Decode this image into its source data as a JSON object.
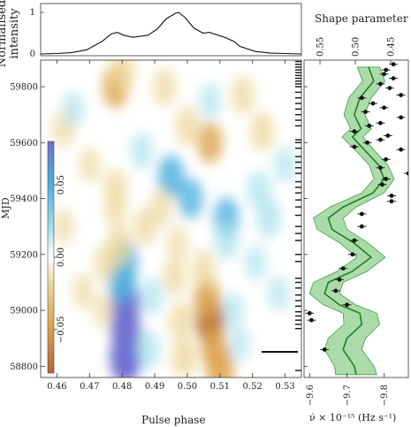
{
  "chart_data": [
    {
      "panel": "profile",
      "type": "line",
      "ylabel": "Normalised intensity",
      "yticks": [
        "0",
        "1"
      ],
      "ylim": [
        0,
        1
      ],
      "xlim": [
        0.455,
        0.54
      ],
      "x": [
        0.455,
        0.46,
        0.465,
        0.47,
        0.475,
        0.478,
        0.48,
        0.482,
        0.485,
        0.488,
        0.49,
        0.493,
        0.496,
        0.499,
        0.5,
        0.502,
        0.505,
        0.508,
        0.51,
        0.512,
        0.515,
        0.518,
        0.52,
        0.525,
        0.53,
        0.535,
        0.54
      ],
      "values": [
        0.0,
        0.01,
        0.03,
        0.1,
        0.3,
        0.48,
        0.52,
        0.45,
        0.4,
        0.43,
        0.45,
        0.6,
        0.85,
        0.98,
        1.0,
        0.88,
        0.62,
        0.5,
        0.52,
        0.47,
        0.4,
        0.3,
        0.18,
        0.06,
        0.02,
        0.01,
        0.0
      ],
      "color": "#111111"
    },
    {
      "panel": "residual_map",
      "type": "heatmap",
      "xlabel": "Pulse phase",
      "ylabel": "MJD",
      "xticks": [
        "0.46",
        "0.47",
        "0.48",
        "0.49",
        "0.50",
        "0.51",
        "0.52",
        "0.53"
      ],
      "xtick_values": [
        0.46,
        0.47,
        0.48,
        0.49,
        0.5,
        0.51,
        0.52,
        0.53
      ],
      "yticks": [
        "58800",
        "59000",
        "59200",
        "59400",
        "59600",
        "59800"
      ],
      "ytick_values": [
        58800,
        59000,
        59200,
        59400,
        59600,
        59800
      ],
      "xlim": [
        0.455,
        0.535
      ],
      "ylim": [
        58760,
        59895
      ],
      "colorbar": {
        "ticks": [
          "0.05",
          "0.00",
          "−0.05"
        ],
        "tick_values": [
          0.05,
          0.0,
          -0.05
        ],
        "range": [
          -0.08,
          0.08
        ]
      },
      "colormap": [
        "#b5643a",
        "#dca24a",
        "#ecd69a",
        "#ffffff",
        "#a8e0ec",
        "#4aaede",
        "#6f6fd0"
      ],
      "blobs": [
        {
          "x": 0.481,
          "y": 58830,
          "v": 0.085
        },
        {
          "x": 0.481,
          "y": 58930,
          "v": 0.075
        },
        {
          "x": 0.481,
          "y": 59020,
          "v": 0.07
        },
        {
          "x": 0.48,
          "y": 59110,
          "v": 0.06
        },
        {
          "x": 0.481,
          "y": 59180,
          "v": 0.04
        },
        {
          "x": 0.488,
          "y": 58860,
          "v": 0.03
        },
        {
          "x": 0.489,
          "y": 59050,
          "v": 0.025
        },
        {
          "x": 0.499,
          "y": 58830,
          "v": -0.04
        },
        {
          "x": 0.498,
          "y": 58960,
          "v": -0.035
        },
        {
          "x": 0.496,
          "y": 59120,
          "v": -0.03
        },
        {
          "x": 0.507,
          "y": 58960,
          "v": -0.07
        },
        {
          "x": 0.508,
          "y": 58870,
          "v": -0.05
        },
        {
          "x": 0.506,
          "y": 59040,
          "v": -0.055
        },
        {
          "x": 0.51,
          "y": 58790,
          "v": -0.06
        },
        {
          "x": 0.505,
          "y": 59150,
          "v": -0.03
        },
        {
          "x": 0.514,
          "y": 59000,
          "v": 0.02
        },
        {
          "x": 0.516,
          "y": 58880,
          "v": 0.015
        },
        {
          "x": 0.475,
          "y": 59170,
          "v": -0.03
        },
        {
          "x": 0.468,
          "y": 59070,
          "v": -0.02
        },
        {
          "x": 0.474,
          "y": 59000,
          "v": -0.015
        },
        {
          "x": 0.479,
          "y": 59230,
          "v": -0.04
        },
        {
          "x": 0.478,
          "y": 59800,
          "v": -0.05
        },
        {
          "x": 0.48,
          "y": 59860,
          "v": -0.04
        },
        {
          "x": 0.478,
          "y": 59440,
          "v": -0.03
        },
        {
          "x": 0.478,
          "y": 59360,
          "v": -0.025
        },
        {
          "x": 0.486,
          "y": 59570,
          "v": 0.025
        },
        {
          "x": 0.495,
          "y": 59480,
          "v": 0.05
        },
        {
          "x": 0.501,
          "y": 59400,
          "v": 0.04
        },
        {
          "x": 0.5,
          "y": 59660,
          "v": -0.035
        },
        {
          "x": 0.512,
          "y": 59330,
          "v": 0.045
        },
        {
          "x": 0.512,
          "y": 59250,
          "v": 0.03
        },
        {
          "x": 0.525,
          "y": 59330,
          "v": 0.035
        },
        {
          "x": 0.507,
          "y": 59600,
          "v": -0.045
        },
        {
          "x": 0.493,
          "y": 59800,
          "v": -0.03
        },
        {
          "x": 0.517,
          "y": 59770,
          "v": -0.03
        },
        {
          "x": 0.523,
          "y": 59640,
          "v": -0.035
        },
        {
          "x": 0.522,
          "y": 59430,
          "v": 0.03
        },
        {
          "x": 0.53,
          "y": 59520,
          "v": 0.02
        },
        {
          "x": 0.521,
          "y": 59170,
          "v": 0.02
        },
        {
          "x": 0.528,
          "y": 59060,
          "v": 0.015
        },
        {
          "x": 0.462,
          "y": 59650,
          "v": -0.025
        },
        {
          "x": 0.465,
          "y": 59720,
          "v": 0.02
        },
        {
          "x": 0.47,
          "y": 59520,
          "v": -0.02
        },
        {
          "x": 0.462,
          "y": 59300,
          "v": -0.02
        },
        {
          "x": 0.507,
          "y": 59750,
          "v": 0.02
        },
        {
          "x": 0.492,
          "y": 59370,
          "v": -0.025
        },
        {
          "x": 0.487,
          "y": 59300,
          "v": -0.03
        },
        {
          "x": 0.497,
          "y": 59240,
          "v": -0.02
        }
      ],
      "observation_epochs": [
        58785,
        58935,
        58950,
        58965,
        58980,
        58995,
        59015,
        59035,
        59055,
        59080,
        59100,
        59115,
        59175,
        59200,
        59250,
        59275,
        59300,
        59340,
        59370,
        59395,
        59420,
        59440,
        59460,
        59490,
        59510,
        59530,
        59550,
        59580,
        59600,
        59610,
        59660,
        59680,
        59700,
        59720,
        59740,
        59760,
        59780,
        59800,
        59810,
        59820,
        59830,
        59840,
        59850,
        59860,
        59870,
        59880,
        59890
      ]
    },
    {
      "panel": "spindown",
      "type": "scatter",
      "xlabel": "ν̇ × 10⁻¹⁵ (Hz s⁻¹)",
      "top_axis_label": "Shape parameter",
      "xticks": [
        "−9.6",
        "−9.7",
        "−9.8"
      ],
      "xtick_values": [
        -9.6,
        -9.7,
        -9.8
      ],
      "top_ticks": [
        "0.55",
        "0.50",
        "0.45"
      ],
      "top_tick_values": [
        0.55,
        0.5,
        0.45
      ],
      "xlim": [
        -9.585,
        -9.865
      ],
      "ylim": [
        58760,
        59895
      ],
      "model": {
        "mjd": [
          59870,
          59820,
          59760,
          59700,
          59650,
          59620,
          59570,
          59520,
          59470,
          59420,
          59370,
          59330,
          59290,
          59240,
          59190,
          59140,
          59100,
          59060,
          59020,
          58990,
          58950,
          58900,
          58860,
          58800,
          58770
        ],
        "median": [
          -9.758,
          -9.772,
          -9.735,
          -9.72,
          -9.738,
          -9.715,
          -9.75,
          -9.785,
          -9.8,
          -9.77,
          -9.69,
          -9.65,
          -9.66,
          -9.72,
          -9.765,
          -9.715,
          -9.65,
          -9.64,
          -9.68,
          -9.735,
          -9.74,
          -9.7,
          -9.69,
          -9.72,
          -9.725
        ],
        "halfwidth": [
          0.03,
          0.03,
          0.03,
          0.028,
          0.028,
          0.028,
          0.025,
          0.025,
          0.027,
          0.03,
          0.035,
          0.04,
          0.04,
          0.038,
          0.038,
          0.04,
          0.04,
          0.04,
          0.043,
          0.045,
          0.048,
          0.05,
          0.05,
          0.053,
          0.055
        ],
        "color": "#2e8b2e",
        "band_color": "#8fcf8f"
      },
      "points": [
        {
          "x": -9.825,
          "y": 59880
        },
        {
          "x": -9.805,
          "y": 59860
        },
        {
          "x": -9.8,
          "y": 59845
        },
        {
          "x": -9.825,
          "y": 59830
        },
        {
          "x": -9.79,
          "y": 59810
        },
        {
          "x": -9.815,
          "y": 59795
        },
        {
          "x": -9.845,
          "y": 59770
        },
        {
          "x": -9.74,
          "y": 59760
        },
        {
          "x": -9.77,
          "y": 59740
        },
        {
          "x": -9.8,
          "y": 59725
        },
        {
          "x": -9.75,
          "y": 59710
        },
        {
          "x": -9.845,
          "y": 59690
        },
        {
          "x": -9.79,
          "y": 59670
        },
        {
          "x": -9.76,
          "y": 59660
        },
        {
          "x": -9.72,
          "y": 59640
        },
        {
          "x": -9.81,
          "y": 59625
        },
        {
          "x": -9.79,
          "y": 59610
        },
        {
          "x": -9.755,
          "y": 59600
        },
        {
          "x": -9.72,
          "y": 59585
        },
        {
          "x": -9.845,
          "y": 59575
        },
        {
          "x": -9.805,
          "y": 59540
        },
        {
          "x": -9.79,
          "y": 59510
        },
        {
          "x": -9.865,
          "y": 59490
        },
        {
          "x": -9.805,
          "y": 59470
        },
        {
          "x": -9.795,
          "y": 59450
        },
        {
          "x": -9.82,
          "y": 59410
        },
        {
          "x": -9.82,
          "y": 59390
        },
        {
          "x": -9.74,
          "y": 59345
        },
        {
          "x": -9.74,
          "y": 59300
        },
        {
          "x": -9.72,
          "y": 59250
        },
        {
          "x": -9.715,
          "y": 59200
        },
        {
          "x": -9.69,
          "y": 59150
        },
        {
          "x": -9.68,
          "y": 59110
        },
        {
          "x": -9.67,
          "y": 59070
        },
        {
          "x": -9.7,
          "y": 59020
        },
        {
          "x": -9.6,
          "y": 58990
        },
        {
          "x": -9.605,
          "y": 58965
        },
        {
          "x": -9.64,
          "y": 58860
        }
      ],
      "point_color": "#111111"
    }
  ]
}
